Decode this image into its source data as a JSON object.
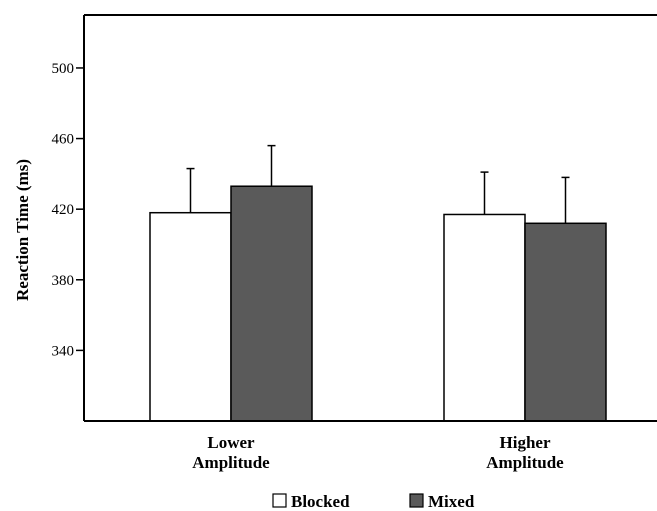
{
  "chart_data": {
    "type": "bar",
    "ylabel": "Reaction Time (ms)",
    "ylim": [
      300,
      530
    ],
    "yticks": [
      340,
      380,
      420,
      460,
      500
    ],
    "categories": [
      [
        "Lower",
        "Amplitude"
      ],
      [
        "Higher",
        "Amplitude"
      ]
    ],
    "series": [
      {
        "name": "Blocked",
        "color": "#ffffff",
        "values": [
          418,
          417
        ],
        "error": [
          25,
          24
        ]
      },
      {
        "name": "Mixed",
        "color": "#5a5a5a",
        "values": [
          433,
          412
        ],
        "error": [
          23,
          26
        ]
      }
    ],
    "legend_position": "bottom",
    "grid": false
  }
}
